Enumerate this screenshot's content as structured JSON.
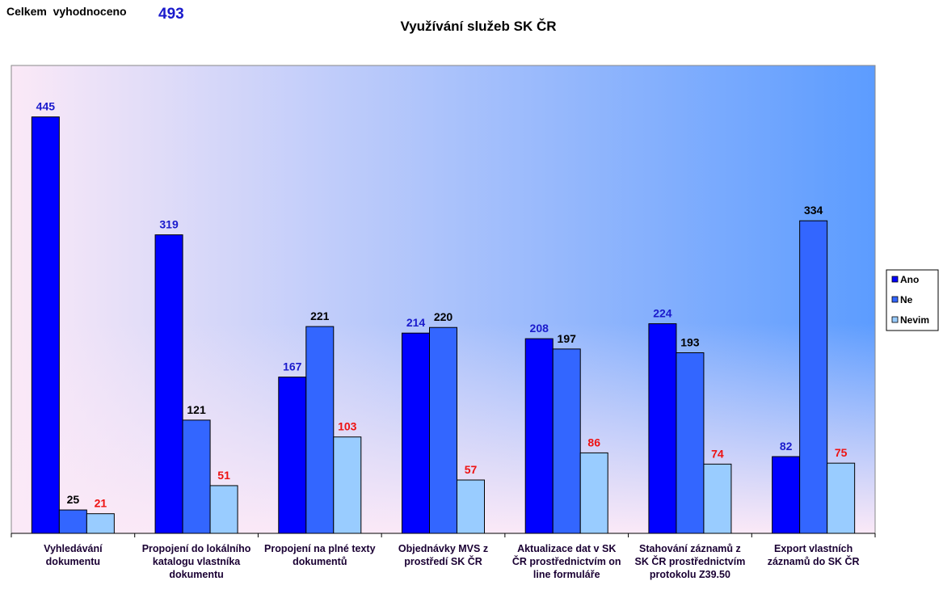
{
  "header": {
    "total_label": "Celkem  vyhodnoceno",
    "total_value": "493"
  },
  "chart_data": {
    "type": "bar",
    "title": "Využívání služeb SK ČR",
    "xlabel": "",
    "ylabel": "",
    "ylim": [
      0,
      500
    ],
    "grid": false,
    "legend_position": "right",
    "categories": [
      [
        "Vyhledávání",
        "dokumentu"
      ],
      [
        "Propojení do lokálního",
        "katalogu vlastníka",
        "dokumentu"
      ],
      [
        "Propojení na plné texty",
        "dokumentů"
      ],
      [
        "Objednávky MVS z",
        "prostředí SK ČR"
      ],
      [
        "Aktualizace dat v SK",
        "ČR prostřednictvím on",
        "line formuláře"
      ],
      [
        "Stahování záznamů z",
        "SK ČR prostřednictvím",
        "protokolu Z39.50"
      ],
      [
        "Export vlastních",
        "záznamů do SK ČR"
      ]
    ],
    "series": [
      {
        "name": "Ano",
        "values": [
          445,
          319,
          167,
          214,
          208,
          224,
          82
        ],
        "color": "#0000ff",
        "label_color": "#1a1acc"
      },
      {
        "name": "Ne",
        "values": [
          25,
          121,
          221,
          220,
          197,
          193,
          334
        ],
        "color": "#3366ff",
        "label_color": "#000000"
      },
      {
        "name": "Nevim",
        "values": [
          21,
          51,
          103,
          57,
          86,
          74,
          75
        ],
        "color": "#99ccff",
        "label_color": "#ee1111"
      }
    ],
    "background": {
      "gradient_from": "#fbe9f7",
      "gradient_to": "#5c9cff"
    }
  }
}
